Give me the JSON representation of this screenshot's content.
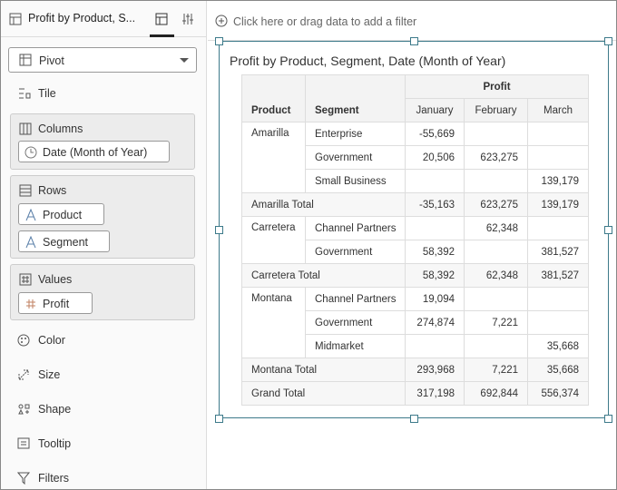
{
  "sidebar": {
    "tab_title": "Profit by Product, S...",
    "viz_type": "Pivot",
    "tile": "Tile",
    "columns": {
      "label": "Columns",
      "items": [
        "Date (Month of Year)"
      ]
    },
    "rows": {
      "label": "Rows",
      "items": [
        "Product",
        "Segment"
      ]
    },
    "values": {
      "label": "Values",
      "items": [
        "Profit"
      ]
    },
    "properties": [
      "Color",
      "Size",
      "Shape",
      "Tooltip",
      "Filters"
    ]
  },
  "filter_bar": {
    "placeholder": "Click here or drag data to add a filter"
  },
  "pivot": {
    "title": "Profit by Product, Segment, Date (Month of Year)",
    "measure": "Profit",
    "row_headers": [
      "Product",
      "Segment"
    ],
    "months": [
      "January",
      "February",
      "March"
    ],
    "groups": [
      {
        "product": "Amarilla",
        "rows": [
          {
            "segment": "Enterprise",
            "values": [
              "-55,669",
              null,
              null
            ]
          },
          {
            "segment": "Government",
            "values": [
              "20,506",
              "623,275",
              null
            ]
          },
          {
            "segment": "Small Business",
            "values": [
              null,
              null,
              "139,179"
            ]
          }
        ],
        "total": {
          "label": "Amarilla Total",
          "values": [
            "-35,163",
            "623,275",
            "139,179"
          ]
        }
      },
      {
        "product": "Carretera",
        "rows": [
          {
            "segment": "Channel Partners",
            "values": [
              null,
              "62,348",
              null
            ]
          },
          {
            "segment": "Government",
            "values": [
              "58,392",
              null,
              "381,527"
            ]
          }
        ],
        "total": {
          "label": "Carretera Total",
          "values": [
            "58,392",
            "62,348",
            "381,527"
          ]
        }
      },
      {
        "product": "Montana",
        "rows": [
          {
            "segment": "Channel Partners",
            "values": [
              "19,094",
              null,
              null
            ]
          },
          {
            "segment": "Government",
            "values": [
              "274,874",
              "7,221",
              null
            ]
          },
          {
            "segment": "Midmarket",
            "values": [
              null,
              null,
              "35,668"
            ]
          }
        ],
        "total": {
          "label": "Montana Total",
          "values": [
            "293,968",
            "7,221",
            "35,668"
          ]
        }
      }
    ],
    "grand_total": {
      "label": "Grand Total",
      "values": [
        "317,198",
        "692,844",
        "556,374"
      ]
    }
  }
}
